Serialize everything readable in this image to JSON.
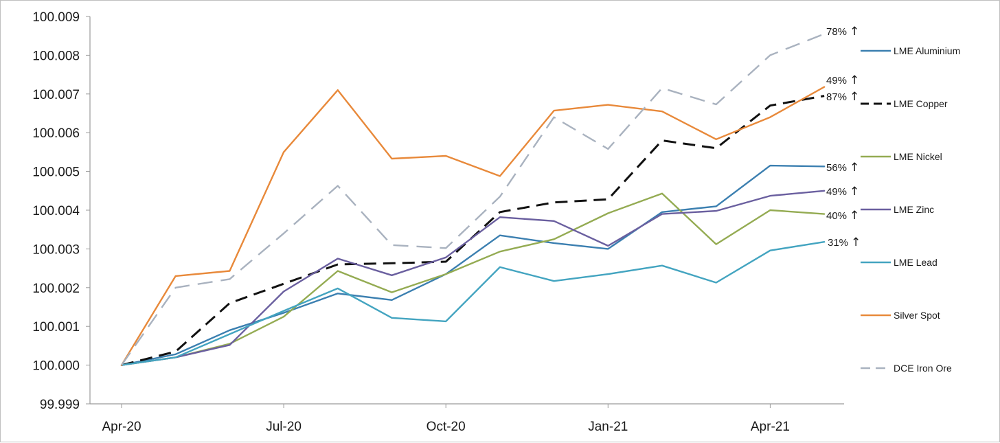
{
  "chart_data": {
    "type": "line",
    "title": "",
    "xlabel": "",
    "ylabel": "",
    "ylim": [
      99.999,
      100.009
    ],
    "y_ticks": [
      "99.999",
      "100.000",
      "100.001",
      "100.002",
      "100.003",
      "100.004",
      "100.005",
      "100.006",
      "100.007",
      "100.008",
      "100.009"
    ],
    "x_tick_labels": [
      "Apr-20",
      "Jul-20",
      "Oct-20",
      "Jan-21",
      "Apr-21"
    ],
    "x": [
      "Apr-20",
      "May-20",
      "Jun-20",
      "Jul-20",
      "Aug-20",
      "Sep-20",
      "Oct-20",
      "Nov-20",
      "Dec-20",
      "Jan-21",
      "Feb-21",
      "Mar-21",
      "Apr-21",
      "May-21"
    ],
    "grid": false,
    "legend_position": "right",
    "series": [
      {
        "name": "LME Aluminium",
        "color": "#3b7fb0",
        "dash": "solid",
        "values": [
          100.0,
          100.00028,
          100.0009,
          100.00135,
          100.00185,
          100.00168,
          100.00235,
          100.00335,
          100.00315,
          100.003,
          100.00395,
          100.0041,
          100.00515,
          100.00513
        ]
      },
      {
        "name": "LME Copper",
        "color": "#111111",
        "dash": "dashed",
        "values": [
          100.0,
          100.00035,
          100.0016,
          100.0021,
          100.0026,
          100.00263,
          100.00267,
          100.00395,
          100.0042,
          100.00428,
          100.0058,
          100.0056,
          100.0067,
          100.00695
        ]
      },
      {
        "name": "LME Nickel",
        "color": "#94ab52",
        "dash": "solid",
        "values": [
          100.0,
          100.0002,
          100.00055,
          100.00125,
          100.00243,
          100.00188,
          100.00235,
          100.00293,
          100.00325,
          100.00392,
          100.00443,
          100.00312,
          100.004,
          100.0039
        ]
      },
      {
        "name": "LME Zinc",
        "color": "#6a5f9f",
        "dash": "solid",
        "values": [
          100.0,
          100.0002,
          100.00052,
          100.0019,
          100.00275,
          100.00232,
          100.00278,
          100.00382,
          100.00372,
          100.00308,
          100.0039,
          100.00398,
          100.00437,
          100.0045
        ]
      },
      {
        "name": "LME Lead",
        "color": "#43a4c0",
        "dash": "solid",
        "values": [
          100.0,
          100.0002,
          100.0008,
          100.0014,
          100.00198,
          100.00122,
          100.00113,
          100.00253,
          100.00217,
          100.00235,
          100.00257,
          100.00213,
          100.00296,
          100.00318
        ]
      },
      {
        "name": "Silver Spot",
        "color": "#e8893a",
        "dash": "solid",
        "values": [
          100.0,
          100.0023,
          100.00243,
          100.0055,
          100.0071,
          100.00533,
          100.0054,
          100.00488,
          100.00657,
          100.00672,
          100.00655,
          100.00583,
          100.0064,
          100.00718
        ]
      },
      {
        "name": "DCE Iron Ore",
        "color": "#a9b2bf",
        "dash": "dashed",
        "values": [
          100.0,
          100.002,
          100.00222,
          100.0034,
          100.00463,
          100.0031,
          100.00302,
          100.00435,
          100.0064,
          100.00558,
          100.00715,
          100.00673,
          100.008,
          100.00855
        ]
      }
    ],
    "annotations": [
      {
        "text": "78%",
        "arrow": "↑",
        "series": "DCE Iron Ore"
      },
      {
        "text": "49%",
        "arrow": "↑",
        "series": "Silver Spot"
      },
      {
        "text": "87%",
        "arrow": "↑",
        "series": "LME Copper"
      },
      {
        "text": "56%",
        "arrow": "↑",
        "series": "LME Aluminium"
      },
      {
        "text": "49%",
        "arrow": "↑",
        "series": "LME Zinc"
      },
      {
        "text": "40%",
        "arrow": "↑",
        "series": "LME Nickel"
      },
      {
        "text": "31%",
        "arrow": "↑",
        "series": "LME Lead"
      }
    ],
    "legend": [
      "LME Aluminium",
      "LME Copper",
      "LME Nickel",
      "LME Zinc",
      "LME Lead",
      "Silver Spot",
      "DCE Iron Ore"
    ]
  }
}
